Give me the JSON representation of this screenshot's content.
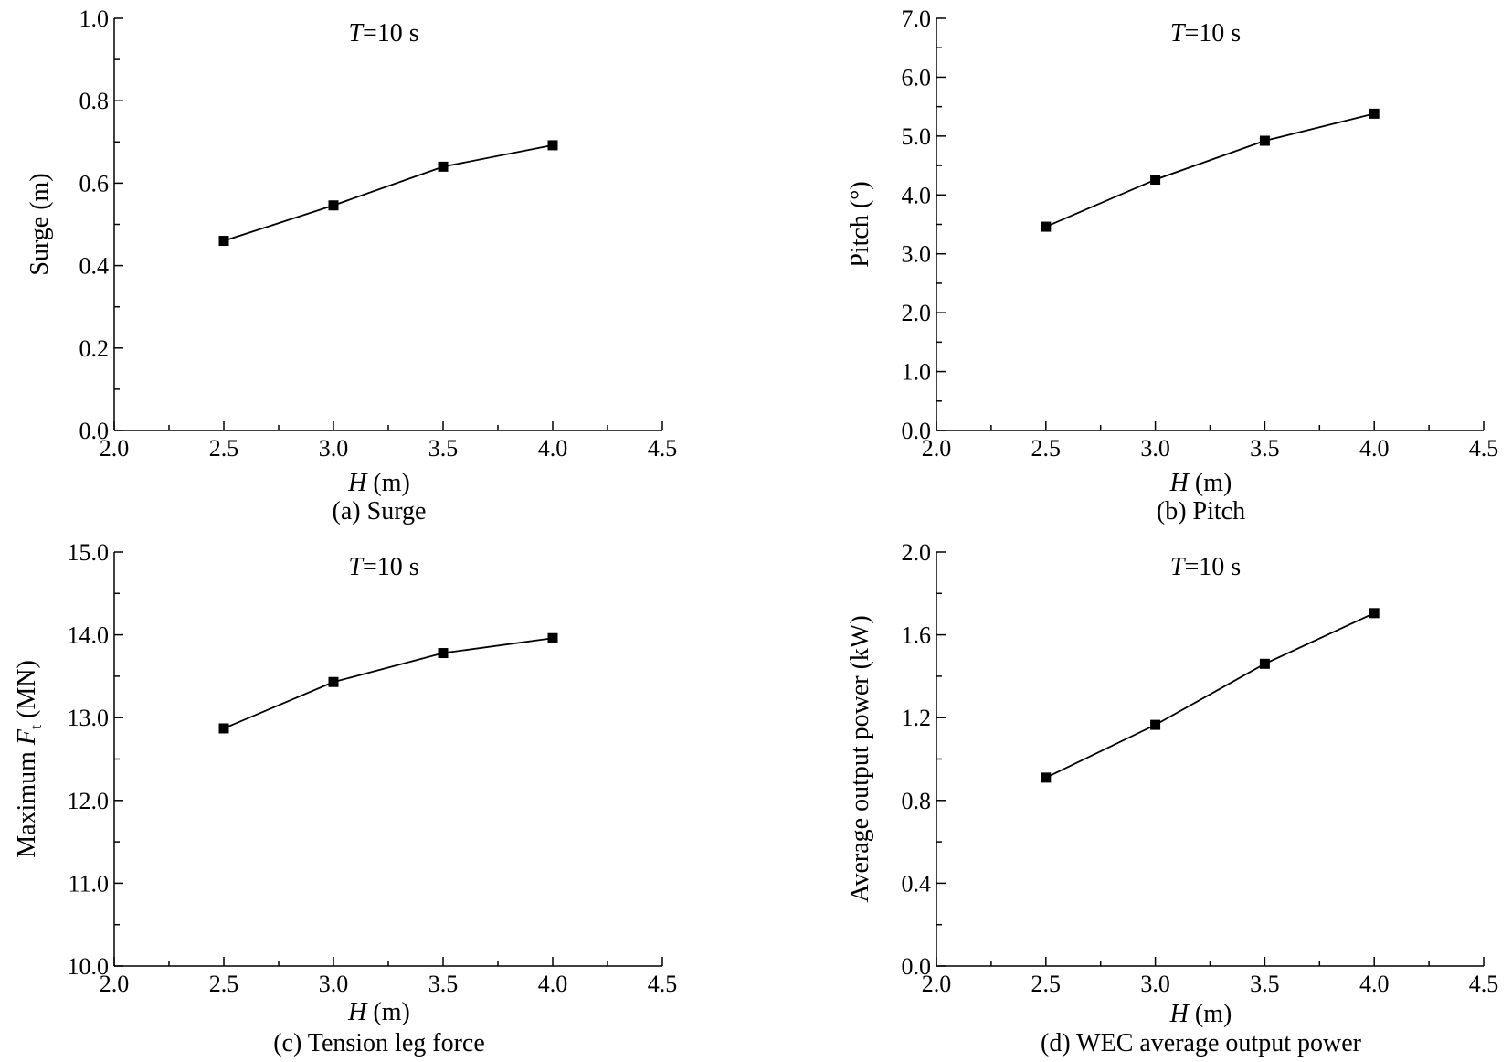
{
  "chart_data": [
    {
      "type": "line",
      "annotation": {
        "italic": "T",
        "rest": "=10 s"
      },
      "xlabel": {
        "italic": "H",
        "rest": " (m)"
      },
      "ylabel": {
        "pre": "Surge (m)",
        "italic": "",
        "sub": "",
        "post": ""
      },
      "caption": "(a) Surge",
      "xlim": [
        2.0,
        4.5
      ],
      "ylim": [
        0.0,
        1.0
      ],
      "x_ticks": [
        "2.0",
        "2.5",
        "3.0",
        "3.5",
        "4.0",
        "4.5"
      ],
      "y_ticks": [
        "0.0",
        "0.2",
        "0.4",
        "0.6",
        "0.8",
        "1.0"
      ],
      "x": [
        2.5,
        3.0,
        3.5,
        4.0
      ],
      "y": [
        0.46,
        0.546,
        0.64,
        0.692
      ]
    },
    {
      "type": "line",
      "annotation": {
        "italic": "T",
        "rest": "=10 s"
      },
      "xlabel": {
        "italic": "H",
        "rest": " (m)"
      },
      "ylabel": {
        "pre": "Pitch (°)",
        "italic": "",
        "sub": "",
        "post": ""
      },
      "caption": "(b) Pitch",
      "xlim": [
        2.0,
        4.5
      ],
      "ylim": [
        0.0,
        7.0
      ],
      "x_ticks": [
        "2.0",
        "2.5",
        "3.0",
        "3.5",
        "4.0",
        "4.5"
      ],
      "y_ticks": [
        "0.0",
        "1.0",
        "2.0",
        "3.0",
        "4.0",
        "5.0",
        "6.0",
        "7.0"
      ],
      "x": [
        2.5,
        3.0,
        3.5,
        4.0
      ],
      "y": [
        3.46,
        4.26,
        4.92,
        5.38
      ]
    },
    {
      "type": "line",
      "annotation": {
        "italic": "T",
        "rest": "=10 s"
      },
      "xlabel": {
        "italic": "H",
        "rest": " (m)"
      },
      "ylabel": {
        "pre": "Maximum ",
        "italic": "F",
        "sub": "t",
        "post": " (MN)"
      },
      "caption": "(c) Tension leg force",
      "xlim": [
        2.0,
        4.5
      ],
      "ylim": [
        10.0,
        15.0
      ],
      "x_ticks": [
        "2.0",
        "2.5",
        "3.0",
        "3.5",
        "4.0",
        "4.5"
      ],
      "y_ticks": [
        "10.0",
        "11.0",
        "12.0",
        "13.0",
        "14.0",
        "15.0"
      ],
      "x": [
        2.5,
        3.0,
        3.5,
        4.0
      ],
      "y": [
        12.87,
        13.43,
        13.78,
        13.96
      ]
    },
    {
      "type": "line",
      "annotation": {
        "italic": "T",
        "rest": "=10 s"
      },
      "xlabel": {
        "italic": "H",
        "rest": " (m)"
      },
      "ylabel": {
        "pre": "Average output power (kW)",
        "italic": "",
        "sub": "",
        "post": ""
      },
      "caption": "(d) WEC average output power",
      "xlim": [
        2.0,
        4.5
      ],
      "ylim": [
        0.0,
        2.0
      ],
      "x_ticks": [
        "2.0",
        "2.5",
        "3.0",
        "3.5",
        "4.0",
        "4.5"
      ],
      "y_ticks": [
        "0.0",
        "0.4",
        "0.8",
        "1.2",
        "1.6",
        "2.0"
      ],
      "x": [
        2.5,
        3.0,
        3.5,
        4.0
      ],
      "y": [
        0.91,
        1.165,
        1.46,
        1.705
      ]
    }
  ]
}
